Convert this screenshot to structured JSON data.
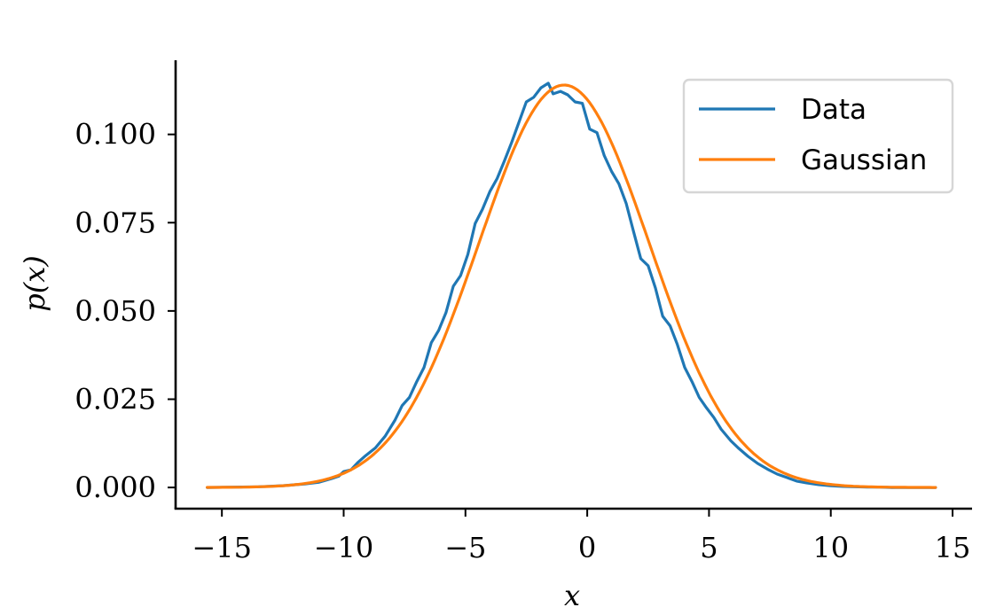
{
  "chart_data": {
    "type": "line",
    "title": "",
    "xlabel": "x",
    "ylabel": "p(x)",
    "xlim": [
      -16.9,
      15.8
    ],
    "ylim": [
      -0.006,
      0.121
    ],
    "xticks": [
      -15,
      -10,
      -5,
      0,
      5,
      10,
      15
    ],
    "xtick_labels": [
      "−15",
      "−10",
      "−5",
      "0",
      "5",
      "10",
      "15"
    ],
    "yticks": [
      0.0,
      0.025,
      0.05,
      0.075,
      0.1
    ],
    "ytick_labels": [
      "0.000",
      "0.025",
      "0.050",
      "0.075",
      "0.100"
    ],
    "grid": false,
    "legend_position": "top-right",
    "series": [
      {
        "name": "Data",
        "color": "#1f77b4",
        "x": [
          -15.6,
          -14.5,
          -13.5,
          -12.5,
          -11.6,
          -11.0,
          -10.5,
          -10.2,
          -10.0,
          -9.7,
          -9.4,
          -9.1,
          -8.7,
          -8.3,
          -7.9,
          -7.6,
          -7.3,
          -7.0,
          -6.7,
          -6.4,
          -6.1,
          -5.8,
          -5.5,
          -5.2,
          -4.9,
          -4.6,
          -4.3,
          -4.0,
          -3.7,
          -3.4,
          -3.1,
          -2.8,
          -2.5,
          -2.2,
          -1.9,
          -1.6,
          -1.4,
          -1.1,
          -0.8,
          -0.5,
          -0.2,
          0.1,
          0.4,
          0.7,
          1.0,
          1.3,
          1.6,
          1.9,
          2.2,
          2.5,
          2.8,
          3.1,
          3.4,
          3.7,
          4.0,
          4.3,
          4.6,
          4.9,
          5.2,
          5.5,
          5.9,
          6.2,
          6.6,
          7.0,
          7.4,
          7.8,
          8.2,
          8.6,
          9.0,
          9.5,
          10.0,
          10.5,
          11.0,
          11.5,
          12.0,
          12.5,
          13.0,
          13.5,
          14.3
        ],
        "y": [
          0.0,
          0.0001,
          0.0002,
          0.0005,
          0.001,
          0.0015,
          0.0025,
          0.0032,
          0.0045,
          0.005,
          0.0072,
          0.009,
          0.0112,
          0.0145,
          0.019,
          0.0232,
          0.0255,
          0.03,
          0.034,
          0.041,
          0.0445,
          0.0495,
          0.057,
          0.06,
          0.066,
          0.0748,
          0.0788,
          0.0838,
          0.0875,
          0.0925,
          0.0978,
          0.1035,
          0.1092,
          0.1105,
          0.1132,
          0.1145,
          0.1115,
          0.1122,
          0.1112,
          0.1092,
          0.1088,
          0.1015,
          0.1005,
          0.094,
          0.0895,
          0.086,
          0.0805,
          0.0725,
          0.0648,
          0.0628,
          0.0565,
          0.0485,
          0.0458,
          0.0405,
          0.034,
          0.03,
          0.0255,
          0.0225,
          0.0198,
          0.0165,
          0.0132,
          0.0112,
          0.0088,
          0.0068,
          0.0052,
          0.0038,
          0.0028,
          0.0018,
          0.0013,
          0.0008,
          0.0005,
          0.0003,
          0.0002,
          0.0001,
          0.0001,
          0.0,
          0.0,
          0.0,
          0.0
        ]
      },
      {
        "name": "Gaussian",
        "color": "#ff7f0e",
        "mean": -0.95,
        "sd": 3.5,
        "x_range": [
          -15.6,
          14.3
        ]
      }
    ]
  }
}
